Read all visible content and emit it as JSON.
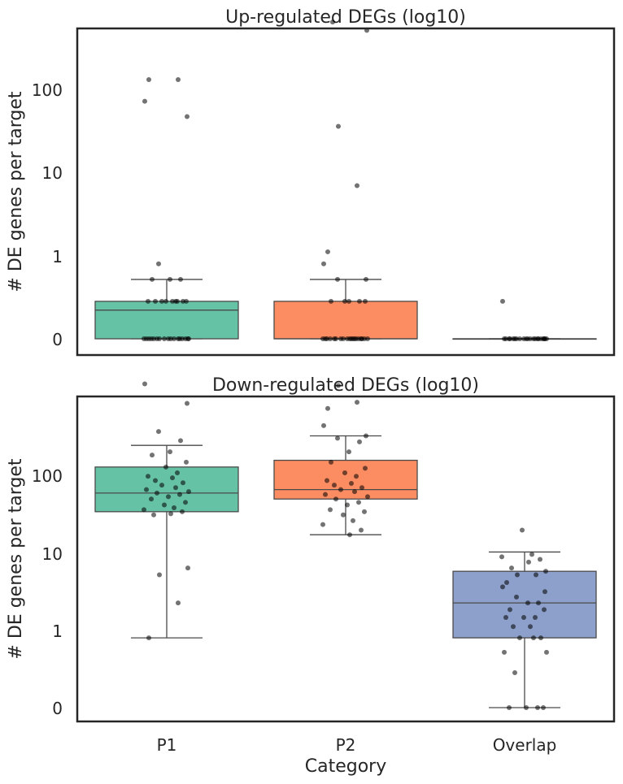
{
  "xlabel": "Category",
  "colors": {
    "P1": "#66c2a5",
    "P2": "#fc8d62",
    "Overlap": "#8da0cb",
    "points": "#000000",
    "lines": "#4a4a4a",
    "axes": "#262626"
  },
  "chart_data": [
    {
      "type": "box",
      "title": "Up-regulated DEGs (log10)",
      "xlabel": "",
      "ylabel": "# DE genes per target",
      "scale": "log10(1+y)",
      "ytick_labels": [
        "0",
        "1",
        "10",
        "100"
      ],
      "ylim": [
        -0.2,
        3.65
      ],
      "categories": [
        "P1",
        "P2",
        "Overlap"
      ],
      "boxes": [
        {
          "name": "P1",
          "whisker_low": 0,
          "q1": 0,
          "median": 0.7,
          "q3": 1,
          "whisker_high": 2,
          "points": [
            0,
            0,
            0,
            0,
            0,
            0,
            0,
            0,
            0,
            0,
            0,
            0,
            0,
            0,
            0,
            0,
            0,
            1,
            1,
            1,
            1,
            1,
            1,
            1,
            1,
            1,
            2,
            2,
            2,
            3,
            60,
            80,
            120,
            120
          ]
        },
        {
          "name": "P2",
          "whisker_low": 0,
          "q1": 0,
          "median": 0,
          "q3": 1,
          "whisker_high": 2,
          "points": [
            0,
            0,
            0,
            0,
            0,
            0,
            0,
            0,
            0,
            0,
            0,
            0,
            0,
            0,
            0,
            0,
            0,
            0,
            0,
            1,
            1,
            1,
            1,
            1,
            2,
            2,
            3,
            4,
            16,
            50,
            300,
            350
          ]
        },
        {
          "name": "Overlap",
          "whisker_low": 0,
          "q1": 0,
          "median": 0,
          "q3": 0,
          "whisker_high": 0,
          "points": [
            0,
            0,
            0,
            0,
            0,
            0,
            0,
            0,
            0,
            0,
            0,
            0,
            0,
            0,
            0,
            0,
            0,
            0,
            0,
            0,
            0,
            1
          ]
        }
      ]
    },
    {
      "type": "box",
      "title": "Down-regulated DEGs (log10)",
      "xlabel": "Category",
      "ylabel": "# DE genes per target",
      "scale": "log10(1+y)",
      "ytick_labels": [
        "0",
        "1",
        "10",
        "100"
      ],
      "ylim": [
        -0.2,
        3.05
      ],
      "categories": [
        "P1",
        "P2",
        "Overlap"
      ],
      "boxes": [
        {
          "name": "P1",
          "whisker_low": 3,
          "q1": 48,
          "median": 70,
          "q3": 118,
          "whisker_high": 182,
          "points": [
            3,
            7,
            13,
            15,
            45,
            46,
            48,
            50,
            52,
            55,
            58,
            62,
            65,
            68,
            70,
            72,
            75,
            78,
            82,
            86,
            90,
            95,
            98,
            105,
            118,
            130,
            150,
            160,
            200,
            240,
            420,
            620
          ]
        },
        {
          "name": "P2",
          "whisker_low": 30,
          "q1": 62,
          "median": 75,
          "q3": 135,
          "whisker_high": 220,
          "points": [
            30,
            33,
            37,
            40,
            45,
            48,
            50,
            55,
            58,
            62,
            65,
            68,
            72,
            75,
            78,
            82,
            85,
            90,
            98,
            105,
            115,
            130,
            160,
            195,
            210,
            220,
            270,
            380,
            430,
            600
          ]
        },
        {
          "name": "Overlap",
          "whisker_low": 0,
          "q1": 3,
          "median": 7,
          "q3": 14,
          "whisker_high": 21,
          "points": [
            0,
            0,
            0,
            0,
            1,
            2,
            2,
            3,
            3,
            3,
            4,
            4,
            5,
            5,
            5,
            6,
            6,
            7,
            7,
            8,
            9,
            10,
            11,
            13,
            13,
            14,
            15,
            17,
            18,
            19,
            20,
            33
          ]
        }
      ]
    }
  ]
}
